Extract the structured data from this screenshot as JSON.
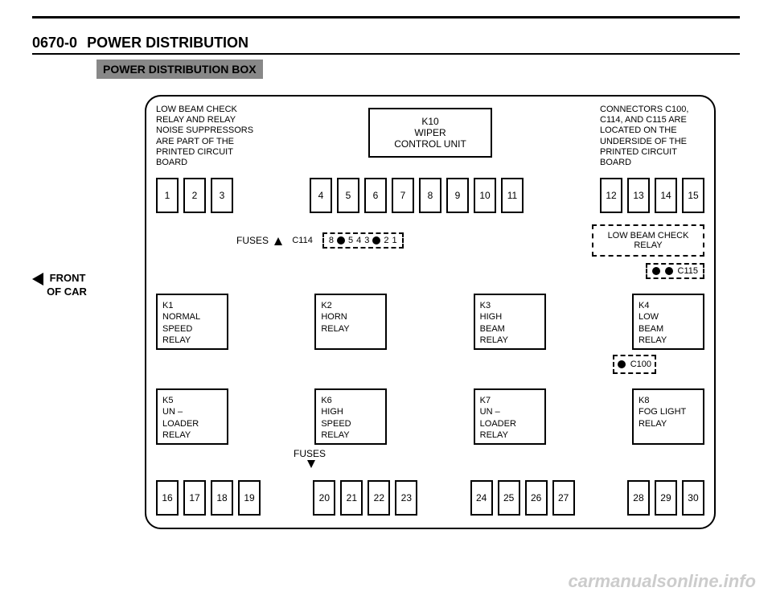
{
  "header": {
    "code": "0670-0",
    "title": "POWER DISTRIBUTION",
    "subtitle": "POWER DISTRIBUTION BOX"
  },
  "front_label": {
    "line1": "FRONT",
    "line2": "OF CAR"
  },
  "notes": {
    "left": "LOW BEAM CHECK RELAY AND RELAY NOISE SUPPRESSORS ARE PART OF THE PRINTED CIRCUIT BOARD",
    "right": "CONNECTORS C100, C114, AND C115 ARE LOCATED ON THE UNDERSIDE OF THE PRINTED CIRCUIT BOARD"
  },
  "k10": {
    "name": "K10",
    "line2": "WIPER",
    "line3": "CONTROL UNIT"
  },
  "fuses_top_left": [
    "1",
    "2",
    "3"
  ],
  "fuses_top_mid": [
    "4",
    "5",
    "6",
    "7",
    "8",
    "9",
    "10",
    "11"
  ],
  "fuses_top_right": [
    "12",
    "13",
    "14",
    "15"
  ],
  "fuses_label": "FUSES",
  "c114": {
    "label": "C114",
    "cells": [
      "8",
      "",
      "5",
      "4",
      "3",
      "",
      "2",
      "1"
    ]
  },
  "lowbeam_relay": "LOW BEAM CHECK RELAY",
  "c115_label": "C115",
  "relays_row1": [
    {
      "id": "K1",
      "l1": "NORMAL",
      "l2": "SPEED",
      "l3": "RELAY"
    },
    {
      "id": "K2",
      "l1": "HORN",
      "l2": "RELAY",
      "l3": ""
    },
    {
      "id": "K3",
      "l1": "HIGH",
      "l2": "BEAM",
      "l3": "RELAY"
    },
    {
      "id": "K4",
      "l1": "LOW",
      "l2": "BEAM",
      "l3": "RELAY"
    }
  ],
  "c100_label": "C100",
  "relays_row2": [
    {
      "id": "K5",
      "l1": "UN –",
      "l2": "LOADER",
      "l3": "RELAY"
    },
    {
      "id": "K6",
      "l1": "HIGH",
      "l2": "SPEED",
      "l3": "RELAY"
    },
    {
      "id": "K7",
      "l1": "UN –",
      "l2": "LOADER",
      "l3": "RELAY"
    },
    {
      "id": "K8",
      "l1": "FOG LIGHT",
      "l2": "RELAY",
      "l3": ""
    }
  ],
  "fuses_bottom_g1": [
    "16",
    "17",
    "18",
    "19"
  ],
  "fuses_bottom_g2": [
    "20",
    "21",
    "22",
    "23"
  ],
  "fuses_bottom_g3": [
    "24",
    "25",
    "26",
    "27"
  ],
  "fuses_bottom_g4": [
    "28",
    "29",
    "30"
  ],
  "watermark": "carmanualsonline.info",
  "colors": {
    "ink": "#000000",
    "bg": "#ffffff",
    "sub_bg": "#888888",
    "watermark": "#cccccc"
  }
}
